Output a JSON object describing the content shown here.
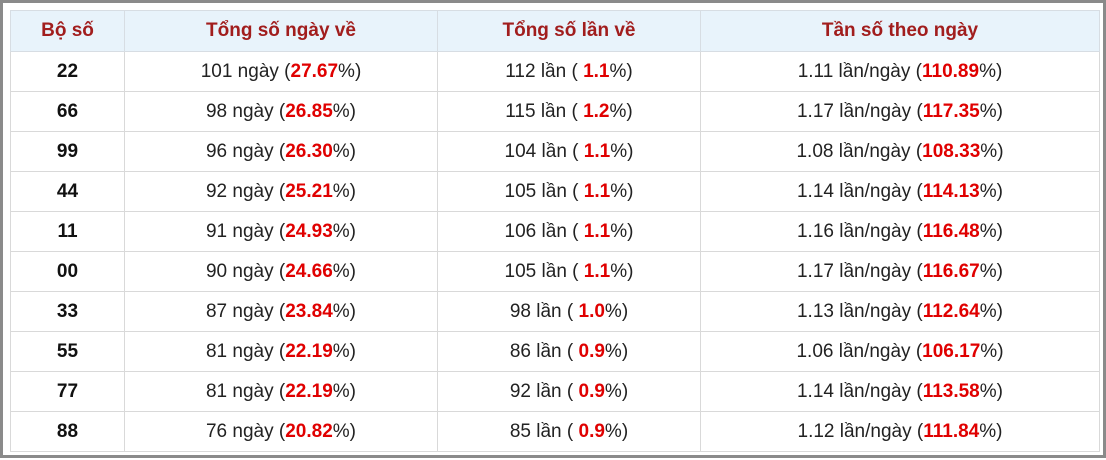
{
  "table": {
    "header": [
      "Bộ số",
      "Tổng số ngày về",
      "Tổng số lần về",
      "Tần số theo ngày"
    ],
    "rows": [
      [
        [
          "22"
        ],
        [
          "101 ngày (",
          "27.67",
          "%)"
        ],
        [
          "112 lần ( ",
          "1.1",
          "%)"
        ],
        [
          "1.11 lần/ngày (",
          "110.89",
          "%)"
        ]
      ],
      [
        [
          "66"
        ],
        [
          "98 ngày (",
          "26.85",
          "%)"
        ],
        [
          "115 lần ( ",
          "1.2",
          "%)"
        ],
        [
          "1.17 lần/ngày (",
          "117.35",
          "%)"
        ]
      ],
      [
        [
          "99"
        ],
        [
          "96 ngày (",
          "26.30",
          "%)"
        ],
        [
          "104 lần ( ",
          "1.1",
          "%)"
        ],
        [
          "1.08 lần/ngày (",
          "108.33",
          "%)"
        ]
      ],
      [
        [
          "44"
        ],
        [
          "92 ngày (",
          "25.21",
          "%)"
        ],
        [
          "105 lần ( ",
          "1.1",
          "%)"
        ],
        [
          "1.14 lần/ngày (",
          "114.13",
          "%)"
        ]
      ],
      [
        [
          "11"
        ],
        [
          "91 ngày (",
          "24.93",
          "%)"
        ],
        [
          "106 lần ( ",
          "1.1",
          "%)"
        ],
        [
          "1.16 lần/ngày (",
          "116.48",
          "%)"
        ]
      ],
      [
        [
          "00"
        ],
        [
          "90 ngày (",
          "24.66",
          "%)"
        ],
        [
          "105 lần ( ",
          "1.1",
          "%)"
        ],
        [
          "1.17 lần/ngày (",
          "116.67",
          "%)"
        ]
      ],
      [
        [
          "33"
        ],
        [
          "87 ngày (",
          "23.84",
          "%)"
        ],
        [
          "98 lần ( ",
          "1.0",
          "%)"
        ],
        [
          "1.13 lần/ngày (",
          "112.64",
          "%)"
        ]
      ],
      [
        [
          "55"
        ],
        [
          "81 ngày (",
          "22.19",
          "%)"
        ],
        [
          "86 lần ( ",
          "0.9",
          "%)"
        ],
        [
          "1.06 lần/ngày (",
          "106.17",
          "%)"
        ]
      ],
      [
        [
          "77"
        ],
        [
          "81 ngày (",
          "22.19",
          "%)"
        ],
        [
          "92 lần ( ",
          "0.9",
          "%)"
        ],
        [
          "1.14 lần/ngày (",
          "113.58",
          "%)"
        ]
      ],
      [
        [
          "88"
        ],
        [
          "76 ngày (",
          "20.82",
          "%)"
        ],
        [
          "85 lần ( ",
          "0.9",
          "%)"
        ],
        [
          "1.12 lần/ngày (",
          "111.84",
          "%)"
        ]
      ]
    ]
  }
}
